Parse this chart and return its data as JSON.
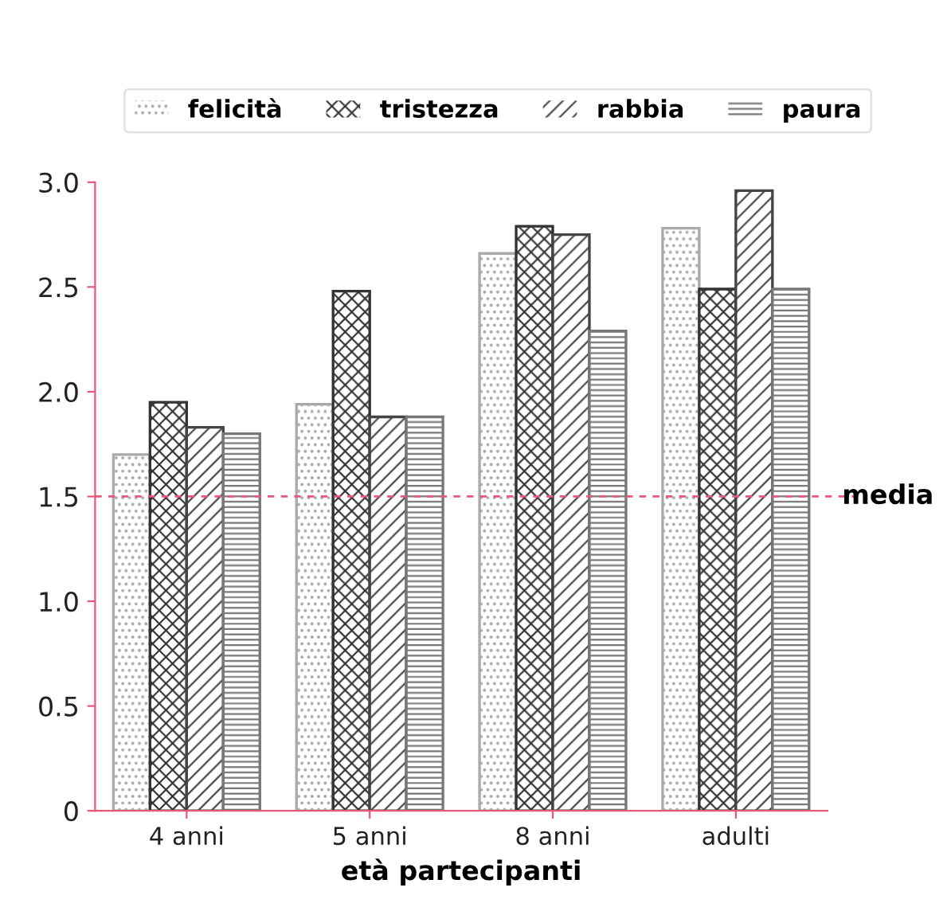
{
  "chart_data": {
    "type": "bar",
    "xlabel": "età partecipanti",
    "categories": [
      "4 anni",
      "5 anni",
      "8 anni",
      "adulti"
    ],
    "series": [
      {
        "name": "felicità",
        "color": "#aaaaaa",
        "values": [
          1.7,
          1.94,
          2.66,
          2.78
        ]
      },
      {
        "name": "tristezza",
        "color": "#333333",
        "values": [
          1.95,
          2.48,
          2.79,
          2.49
        ]
      },
      {
        "name": "rabbia",
        "color": "#444444",
        "values": [
          1.83,
          1.88,
          2.75,
          2.96
        ]
      },
      {
        "name": "paura",
        "color": "#777777",
        "values": [
          1.8,
          1.88,
          2.29,
          2.49
        ]
      }
    ],
    "ylim": [
      0,
      3.0
    ],
    "yticks": [
      0,
      {
        "value": 0.5,
        "label": "0.5"
      },
      {
        "value": 1.0,
        "label": "1.0"
      },
      {
        "value": 1.5,
        "label": "1.5"
      },
      {
        "value": 2.0,
        "label": "2.0"
      },
      {
        "value": 2.5,
        "label": "2.5"
      },
      {
        "value": 3.0,
        "label": "3.0"
      }
    ],
    "ref_lines": [
      {
        "axis": "y",
        "value": 1.5,
        "label": "media",
        "color": "#e8577a",
        "line_style": "dashed"
      }
    ],
    "grid": false,
    "legend": "top"
  }
}
